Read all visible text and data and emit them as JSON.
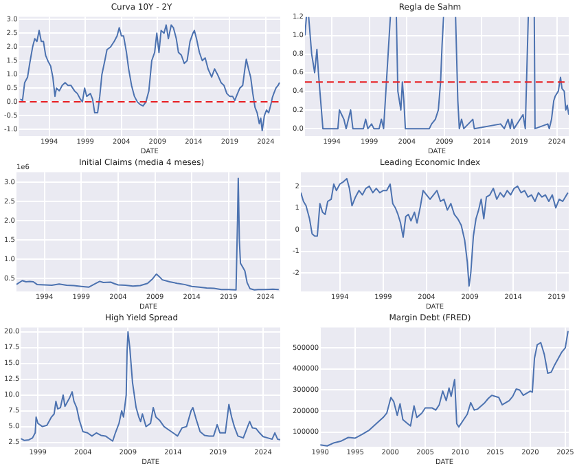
{
  "chart_data": [
    {
      "type": "line",
      "title": "Curva 10Y - 2Y",
      "xlabel": "DATE",
      "color": "#4c72b0",
      "marker": "none",
      "grid": true,
      "x": [
        1990.0,
        1990.3,
        1990.6,
        1991.0,
        1991.3,
        1991.7,
        1992.0,
        1992.3,
        1992.6,
        1992.9,
        1993.2,
        1993.5,
        1993.8,
        1994.2,
        1994.5,
        1994.8,
        1995.0,
        1995.4,
        1995.8,
        1996.2,
        1996.6,
        1997.0,
        1997.5,
        1997.9,
        1998.3,
        1998.6,
        1998.9,
        1999.2,
        1999.7,
        2000.0,
        2000.3,
        2000.7,
        2001.0,
        2001.3,
        2001.7,
        2002.0,
        2002.5,
        2003.0,
        2003.4,
        2003.7,
        2004.0,
        2004.3,
        2004.7,
        2005.0,
        2005.4,
        2005.8,
        2006.2,
        2006.6,
        2007.0,
        2007.4,
        2007.8,
        2008.2,
        2008.6,
        2008.9,
        2009.2,
        2009.5,
        2009.9,
        2010.2,
        2010.5,
        2010.9,
        2011.2,
        2011.6,
        2011.9,
        2012.3,
        2012.7,
        2013.1,
        2013.5,
        2013.9,
        2014.1,
        2014.4,
        2014.8,
        2015.2,
        2015.6,
        2016.0,
        2016.5,
        2016.9,
        2017.3,
        2017.8,
        2018.2,
        2018.6,
        2019.0,
        2019.4,
        2019.7,
        2020.0,
        2020.4,
        2020.8,
        2021.1,
        2021.3,
        2021.6,
        2021.9,
        2022.2,
        2022.5,
        2022.8,
        2023.1,
        2023.3,
        2023.5,
        2023.8,
        2024.1,
        2024.4,
        2024.7,
        2024.9,
        2025.1,
        2025.4,
        2025.7,
        2025.9
      ],
      "values": [
        0.1,
        0.05,
        0.7,
        0.9,
        1.4,
        2.0,
        2.3,
        2.2,
        2.6,
        2.2,
        2.2,
        1.7,
        1.5,
        1.3,
        0.9,
        0.2,
        0.5,
        0.4,
        0.6,
        0.7,
        0.6,
        0.6,
        0.4,
        0.3,
        0.1,
        0.0,
        0.5,
        0.2,
        0.3,
        0.1,
        -0.4,
        -0.4,
        0.2,
        1.0,
        1.5,
        1.9,
        2.0,
        2.2,
        2.4,
        2.7,
        2.4,
        2.4,
        1.8,
        1.2,
        0.6,
        0.2,
        0.0,
        -0.1,
        -0.15,
        0.0,
        0.4,
        1.5,
        1.8,
        2.5,
        1.8,
        2.6,
        2.5,
        2.8,
        2.3,
        2.8,
        2.7,
        2.3,
        1.8,
        1.7,
        1.4,
        1.5,
        2.2,
        2.5,
        2.6,
        2.3,
        1.8,
        1.5,
        1.6,
        1.2,
        0.9,
        1.2,
        1.0,
        0.7,
        0.6,
        0.3,
        0.2,
        0.2,
        0.05,
        0.25,
        0.5,
        0.6,
        1.2,
        1.55,
        1.2,
        0.9,
        0.3,
        -0.2,
        -0.4,
        -0.8,
        -0.6,
        -1.05,
        -0.5,
        -0.3,
        -0.4,
        -0.1,
        0.15,
        0.3,
        0.5,
        0.6,
        0.7
      ],
      "xlim": [
        1989.8,
        2026
      ],
      "xticks": [
        1994,
        1999,
        2004,
        2009,
        2014,
        2019,
        2024
      ],
      "ylim": [
        -1.25,
        3.1
      ],
      "yticks": [
        {
          "value": -1,
          "label": "-1.0"
        },
        -0.5,
        {
          "value": 0,
          "label": "0.0"
        },
        0.5,
        {
          "value": 1,
          "label": "1.0"
        },
        1.5,
        {
          "value": 2,
          "label": "2.0"
        },
        2.5,
        {
          "value": 3,
          "label": "3.0"
        }
      ],
      "ref_lines": [
        {
          "axis": "y",
          "value": 0,
          "color": "#e8262a",
          "line_style": "dashed"
        }
      ]
    },
    {
      "type": "line",
      "title": "Regla de Sahm",
      "xlabel": "DATE",
      "color": "#4c72b0",
      "marker": "none",
      "grid": true,
      "x": [
        1990.4,
        1990.6,
        1990.8,
        1990.9,
        1991.3,
        1991.7,
        1992.0,
        1992.2,
        1992.5,
        1992.8,
        1994.8,
        1995.0,
        1995.3,
        1995.6,
        1995.9,
        1996.5,
        1996.8,
        1998.2,
        1998.5,
        1998.8,
        1999.3,
        1999.6,
        2000.3,
        2000.6,
        2000.9,
        2001.2,
        2001.5,
        2001.8,
        2002.2,
        2002.6,
        2002.8,
        2003.0,
        2003.2,
        2003.4,
        2003.6,
        2003.8,
        2007.0,
        2007.3,
        2007.8,
        2008.2,
        2008.5,
        2008.7,
        2008.9,
        2009.7,
        2010.5,
        2010.8,
        2011.0,
        2011.3,
        2011.6,
        2012.8,
        2013.0,
        2016.5,
        2017.0,
        2017.5,
        2017.8,
        2018.0,
        2018.3,
        2019.5,
        2019.8,
        2020.2,
        2020.6,
        2021.0,
        2021.1,
        2022.8,
        2023.0,
        2023.3,
        2023.6,
        2023.8,
        2024.2,
        2024.5,
        2024.7,
        2025.0,
        2025.2,
        2025.4,
        2025.6
      ],
      "values": [
        1.0,
        1.2,
        null,
        1.2,
        0.8,
        0.6,
        0.85,
        0.6,
        0.3,
        0.0,
        0.0,
        0.2,
        0.15,
        0.1,
        0.0,
        0.2,
        0.0,
        0.0,
        0.1,
        0.0,
        0.05,
        0.0,
        0.0,
        0.1,
        0.0,
        0.4,
        0.8,
        1.2,
        null,
        1.2,
        0.4,
        0.3,
        0.2,
        0.5,
        0.3,
        0.0,
        0.0,
        0.05,
        0.1,
        0.2,
        0.5,
        0.9,
        1.2,
        null,
        1.2,
        0.3,
        0.0,
        0.1,
        0.0,
        0.1,
        0.0,
        0.05,
        0.0,
        0.1,
        0.0,
        0.1,
        0.0,
        0.15,
        0.0,
        1.2,
        null,
        1.2,
        0.0,
        0.05,
        0.0,
        0.1,
        0.3,
        0.35,
        0.4,
        0.55,
        0.43,
        0.4,
        0.2,
        0.25,
        0.15
      ],
      "xlim": [
        1990.4,
        2025.6
      ],
      "xticks": [
        1994,
        1999,
        2004,
        2009,
        2014,
        2019,
        2024
      ],
      "ylim": [
        -0.08,
        1.2
      ],
      "yticks": [
        {
          "value": 0,
          "label": "0.0"
        },
        0.2,
        0.4,
        0.6,
        0.8,
        {
          "value": 1,
          "label": "1.0"
        },
        1.2
      ],
      "ref_lines": [
        {
          "axis": "y",
          "value": 0.5,
          "color": "#e8262a",
          "line_style": "dashed"
        }
      ]
    },
    {
      "type": "line",
      "title": "Initial Claims (media 4 meses)",
      "xlabel": "DATE",
      "color": "#4c72b0",
      "marker": "none",
      "grid": true,
      "annotations": [
        "1e6"
      ],
      "x": [
        1990.2,
        1991.0,
        1991.5,
        1992.0,
        1992.5,
        1993.0,
        1994.0,
        1995.0,
        1996.0,
        1997.0,
        1998.0,
        1999.0,
        2000.0,
        2001.0,
        2001.5,
        2002.0,
        2003.0,
        2003.5,
        2004.0,
        2005.0,
        2006.0,
        2007.0,
        2008.0,
        2008.7,
        2009.2,
        2009.6,
        2010.0,
        2011.0,
        2012.0,
        2013.0,
        2014.0,
        2015.0,
        2016.0,
        2017.0,
        2018.0,
        2019.0,
        2020.0,
        2020.2,
        2020.3,
        2020.45,
        2020.6,
        2020.9,
        2021.2,
        2021.5,
        2021.9,
        2022.5,
        2023.0,
        2024.0,
        2025.0,
        2025.8
      ],
      "values": [
        0.35,
        0.45,
        0.42,
        0.43,
        0.42,
        0.35,
        0.34,
        0.33,
        0.36,
        0.33,
        0.32,
        0.3,
        0.28,
        0.38,
        0.43,
        0.4,
        0.41,
        0.37,
        0.34,
        0.33,
        0.31,
        0.32,
        0.38,
        0.5,
        0.62,
        0.55,
        0.47,
        0.42,
        0.38,
        0.35,
        0.3,
        0.28,
        0.26,
        0.25,
        0.22,
        0.22,
        0.21,
        2.0,
        3.1,
        1.5,
        0.9,
        0.8,
        0.7,
        0.4,
        0.24,
        0.21,
        0.22,
        0.22,
        0.23,
        0.22
      ],
      "xlim": [
        1990.2,
        2026
      ],
      "xticks": [
        1994,
        1999,
        2004,
        2009,
        2014,
        2019,
        2024
      ],
      "ylim": [
        0.17,
        3.26
      ],
      "yticks": [
        0.5,
        {
          "value": 1,
          "label": "1.0"
        },
        1.5,
        {
          "value": 2,
          "label": "2.0"
        },
        2.5,
        {
          "value": 3,
          "label": "3.0"
        }
      ]
    },
    {
      "type": "line",
      "title": "Leading Economic Index",
      "xlabel": "DATE",
      "color": "#4c72b0",
      "marker": "none",
      "grid": true,
      "x": [
        1989.5,
        1989.8,
        1990.1,
        1990.5,
        1990.8,
        1991.1,
        1991.4,
        1991.7,
        1992.0,
        1992.3,
        1992.6,
        1993.0,
        1993.3,
        1993.6,
        1994.0,
        1994.4,
        1994.8,
        1995.1,
        1995.4,
        1995.8,
        1996.2,
        1996.6,
        1997.0,
        1997.4,
        1997.8,
        1998.2,
        1998.6,
        1999.0,
        1999.4,
        1999.8,
        2000.1,
        2000.4,
        2000.7,
        2001.0,
        2001.3,
        2001.6,
        2001.9,
        2002.2,
        2002.6,
        2002.9,
        2003.3,
        2003.6,
        2004.0,
        2004.4,
        2004.8,
        2005.2,
        2005.6,
        2006.0,
        2006.4,
        2006.8,
        2007.2,
        2007.6,
        2008.0,
        2008.4,
        2008.7,
        2008.9,
        2009.1,
        2009.4,
        2009.7,
        2010.0,
        2010.3,
        2010.6,
        2010.9,
        2011.3,
        2011.7,
        2012.1,
        2012.5,
        2012.9,
        2013.3,
        2013.7,
        2014.1,
        2014.5,
        2014.9,
        2015.3,
        2015.7,
        2016.1,
        2016.5,
        2016.9,
        2017.3,
        2017.7,
        2018.1,
        2018.5,
        2018.9,
        2019.3,
        2019.7,
        2020.0,
        2020.3
      ],
      "values": [
        1.7,
        1.3,
        1.1,
        0.5,
        -0.2,
        -0.3,
        -0.3,
        1.2,
        0.8,
        0.7,
        1.3,
        1.4,
        2.1,
        1.8,
        2.1,
        2.2,
        2.35,
        1.9,
        1.1,
        1.5,
        1.8,
        1.6,
        1.9,
        2.0,
        1.7,
        1.9,
        1.7,
        1.8,
        1.8,
        2.1,
        1.2,
        1.0,
        0.7,
        0.3,
        -0.35,
        0.6,
        0.7,
        0.4,
        0.8,
        0.3,
        1.1,
        1.8,
        1.6,
        1.4,
        1.6,
        1.8,
        1.3,
        1.4,
        0.9,
        1.2,
        0.7,
        0.5,
        0.2,
        -0.5,
        -1.5,
        -2.6,
        -2.0,
        -0.3,
        0.5,
        0.9,
        1.4,
        0.5,
        1.5,
        1.6,
        1.9,
        1.4,
        1.7,
        1.5,
        1.8,
        1.6,
        1.9,
        2.0,
        1.7,
        1.8,
        1.5,
        1.6,
        1.3,
        1.7,
        1.5,
        1.6,
        1.3,
        1.6,
        1.0,
        1.4,
        1.3,
        1.5,
        1.7
      ],
      "xlim": [
        1989.5,
        2020.4
      ],
      "xticks": [
        1994,
        1999,
        2004,
        2009,
        2014,
        2019
      ],
      "ylim": [
        -2.85,
        2.65
      ],
      "yticks": [
        -2,
        -1,
        0,
        1,
        2
      ]
    },
    {
      "type": "line",
      "title": "High Yield Spread",
      "xlabel": "DATE",
      "color": "#4c72b0",
      "marker": "none",
      "grid": true,
      "x": [
        1997.1,
        1997.5,
        1998.0,
        1998.4,
        1998.7,
        1998.8,
        1999.0,
        1999.5,
        2000.0,
        2000.5,
        2000.8,
        2001.0,
        2001.2,
        2001.5,
        2001.8,
        2002.0,
        2002.5,
        2002.8,
        2003.0,
        2003.3,
        2003.6,
        2004.0,
        2004.5,
        2005.0,
        2005.5,
        2006.0,
        2006.5,
        2007.0,
        2007.3,
        2007.6,
        2008.0,
        2008.3,
        2008.5,
        2008.8,
        2008.9,
        2009.0,
        2009.2,
        2009.5,
        2009.9,
        2010.2,
        2010.4,
        2010.6,
        2011.0,
        2011.5,
        2011.8,
        2012.1,
        2012.5,
        2013.0,
        2013.5,
        2014.0,
        2014.5,
        2015.0,
        2015.5,
        2016.0,
        2016.2,
        2016.6,
        2017.0,
        2017.5,
        2018.0,
        2018.5,
        2018.9,
        2019.2,
        2019.8,
        2020.2,
        2020.5,
        2020.8,
        2021.2,
        2021.8,
        2022.5,
        2022.8,
        2023.2,
        2023.6,
        2024.0,
        2024.5,
        2025.0,
        2025.3,
        2025.6,
        2025.9
      ],
      "values": [
        3.1,
        2.8,
        2.9,
        3.2,
        4.0,
        6.5,
        5.5,
        5.0,
        5.2,
        6.5,
        7.0,
        9.0,
        7.8,
        8.0,
        10.0,
        8.2,
        9.5,
        10.5,
        9.0,
        8.0,
        6.0,
        4.2,
        4.0,
        3.5,
        4.0,
        3.6,
        3.5,
        3.0,
        2.7,
        4.0,
        5.5,
        7.5,
        6.5,
        10.0,
        17.0,
        20.0,
        17.5,
        12.0,
        8.0,
        6.5,
        5.8,
        7.0,
        5.0,
        5.5,
        8.0,
        6.5,
        6.0,
        5.0,
        4.5,
        4.0,
        3.5,
        4.8,
        5.0,
        7.5,
        8.0,
        6.0,
        4.2,
        3.6,
        3.5,
        3.5,
        5.3,
        4.0,
        4.0,
        8.5,
        6.5,
        5.0,
        3.5,
        3.2,
        5.8,
        4.8,
        4.7,
        4.0,
        3.4,
        3.2,
        3.0,
        4.0,
        3.0,
        2.9
      ],
      "xlim": [
        1997.1,
        2025.9
      ],
      "xticks": [
        1999,
        2004,
        2009,
        2014,
        2019,
        2024
      ],
      "ylim": [
        1.8,
        20.7
      ],
      "yticks": [
        2.5,
        {
          "value": 5,
          "label": "5.0"
        },
        7.5,
        {
          "value": 10,
          "label": "10.0"
        },
        12.5,
        {
          "value": 15,
          "label": "15.0"
        },
        17.5,
        {
          "value": 20,
          "label": "20.0"
        }
      ]
    },
    {
      "type": "line",
      "title": "Margin Debt (FRED)",
      "xlabel": "DATE",
      "color": "#4c72b0",
      "marker": "none",
      "grid": true,
      "x": [
        1990,
        1991,
        1992,
        1993,
        1994,
        1995,
        1996,
        1997,
        1998,
        1999,
        1999.5,
        2000.1,
        2000.5,
        2001.0,
        2001.4,
        2001.8,
        2002.5,
        2002.9,
        2003.4,
        2003.8,
        2004.5,
        2005,
        2006,
        2006.5,
        2007,
        2007.5,
        2008.0,
        2008.4,
        2008.7,
        2009.2,
        2009.5,
        2009.8,
        2010.3,
        2011,
        2011.5,
        2012,
        2012.5,
        2013,
        2013.5,
        2014,
        2014.5,
        2015,
        2015.5,
        2016,
        2016.5,
        2017,
        2017.5,
        2018,
        2018.5,
        2019,
        2019.5,
        2020,
        2020.3,
        2020.6,
        2021,
        2021.5,
        2022,
        2022.5,
        2023,
        2023.5,
        2024,
        2024.5,
        2025,
        2025.4
      ],
      "values": [
        40000,
        35000,
        50000,
        58000,
        75000,
        72000,
        90000,
        110000,
        140000,
        170000,
        190000,
        265000,
        245000,
        180000,
        235000,
        160000,
        140000,
        130000,
        225000,
        170000,
        190000,
        215000,
        215000,
        205000,
        230000,
        295000,
        250000,
        310000,
        270000,
        350000,
        140000,
        125000,
        150000,
        185000,
        240000,
        205000,
        210000,
        225000,
        240000,
        260000,
        275000,
        270000,
        265000,
        230000,
        240000,
        250000,
        270000,
        305000,
        300000,
        275000,
        285000,
        295000,
        290000,
        450000,
        515000,
        525000,
        470000,
        380000,
        385000,
        420000,
        450000,
        480000,
        500000,
        580000
      ],
      "xlim": [
        1990,
        2025.5
      ],
      "xticks": [
        1990,
        1995,
        2000,
        2005,
        2010,
        2015,
        2020,
        2025
      ],
      "ylim": [
        31000,
        597000
      ],
      "yticks": [
        100000,
        200000,
        300000,
        400000,
        500000
      ]
    }
  ]
}
